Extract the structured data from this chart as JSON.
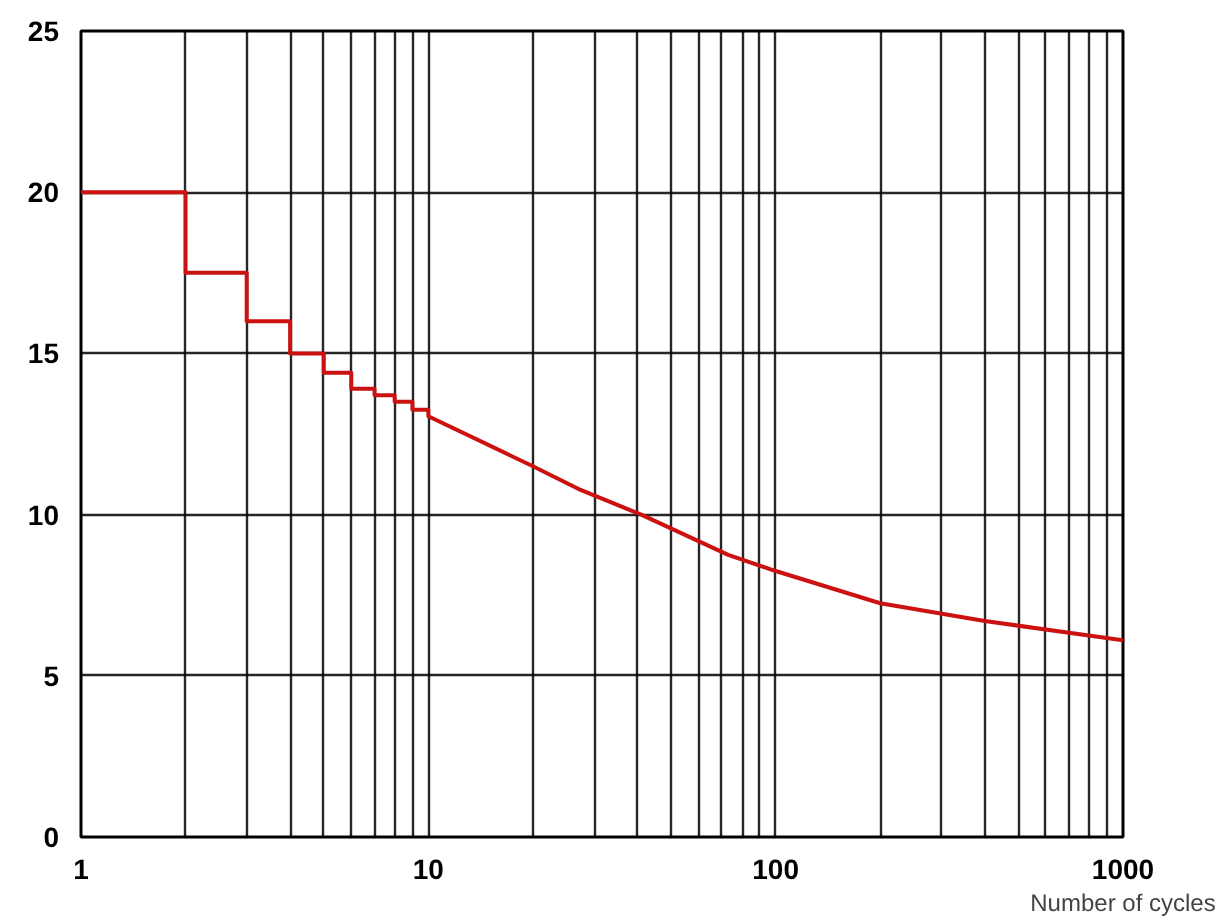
{
  "chart_data": {
    "type": "line",
    "xlabel": "Number of cycles",
    "log": "x",
    "grid": true,
    "marker": "none",
    "line_style": "solid",
    "xlim": [
      1,
      1000
    ],
    "ylim": [
      0,
      25
    ],
    "xticks": [
      1,
      {
        "value": 2,
        "label": null
      },
      {
        "value": 3,
        "label": null
      },
      {
        "value": 4,
        "label": null
      },
      {
        "value": 5,
        "label": null
      },
      {
        "value": 6,
        "label": null
      },
      {
        "value": 7,
        "label": null
      },
      {
        "value": 8,
        "label": null
      },
      {
        "value": 9,
        "label": null
      },
      10,
      {
        "value": 20,
        "label": null
      },
      {
        "value": 30,
        "label": null
      },
      {
        "value": 40,
        "label": null
      },
      {
        "value": 50,
        "label": null
      },
      {
        "value": 60,
        "label": null
      },
      {
        "value": 70,
        "label": null
      },
      {
        "value": 80,
        "label": null
      },
      {
        "value": 90,
        "label": null
      },
      100,
      {
        "value": 200,
        "label": null
      },
      {
        "value": 300,
        "label": null
      },
      {
        "value": 400,
        "label": null
      },
      {
        "value": 500,
        "label": null
      },
      {
        "value": 600,
        "label": null
      },
      {
        "value": 700,
        "label": null
      },
      {
        "value": 800,
        "label": null
      },
      {
        "value": 900,
        "label": null
      },
      1000
    ],
    "yticks": [
      0,
      5,
      10,
      15,
      20,
      25
    ],
    "series": [
      {
        "color": "#cc1111",
        "x": [
          1,
          2,
          2,
          3,
          3,
          4,
          4,
          5,
          5,
          6,
          6,
          7,
          7,
          8,
          8,
          9,
          9,
          10,
          10,
          20,
          27,
          35,
          41,
          73,
          100,
          200,
          400,
          1000
        ],
        "values": [
          20,
          20,
          17.5,
          17.5,
          16,
          16,
          15,
          15,
          14.4,
          14.4,
          13.9,
          13.9,
          13.7,
          13.7,
          13.5,
          13.5,
          13.25,
          13.25,
          13.05,
          11.5,
          10.8,
          10.3,
          10,
          8.75,
          8.25,
          7.25,
          6.7,
          6.1
        ]
      }
    ]
  }
}
